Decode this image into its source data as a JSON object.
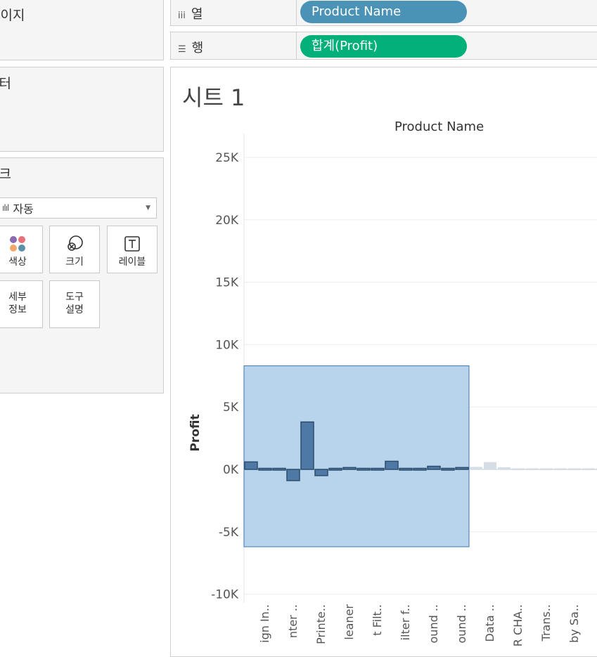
{
  "left": {
    "pages_title": "페이지",
    "filters_title": "필터",
    "marks_title": "마크",
    "marks_type": "자동",
    "mark_buttons": [
      "색상",
      "크기",
      "레이블",
      "세부\n정보",
      "도구\n설명"
    ]
  },
  "shelves": {
    "columns": {
      "label": "열",
      "pill": "Product Name",
      "color": "#4a93b7"
    },
    "rows": {
      "label": "행",
      "pill": "합계(Profit)",
      "color": "#04b07a"
    }
  },
  "sheet": {
    "title": "시트 1"
  },
  "chart_data": {
    "type": "bar",
    "title": "",
    "header": "Product Name",
    "ylabel": "Profit",
    "ylim": [
      -10500,
      25000
    ],
    "yticks": [
      25000,
      20000,
      15000,
      10000,
      5000,
      0,
      -5000,
      -10000
    ],
    "ytick_labels": [
      "25K",
      "20K",
      "15K",
      "10K",
      "5K",
      "0K",
      "-5K",
      "-10K"
    ],
    "categories": [
      "",
      "ign In..",
      "",
      "nter ..",
      "",
      "Printe..",
      "",
      "leaner",
      "",
      "t Filt..",
      "",
      "ilter f..",
      "",
      "ound ..",
      "",
      "ound ..",
      "",
      "Data ..",
      "",
      "R CHA..",
      "",
      "Trans..",
      "",
      "by Sa..",
      "",
      "",
      "",
      ""
    ],
    "values": [
      600,
      80,
      80,
      -900,
      3800,
      -500,
      100,
      150,
      60,
      120,
      650,
      90,
      80,
      250,
      80,
      150,
      200,
      580,
      170,
      20,
      20,
      20,
      15,
      15,
      40,
      40,
      20,
      20
    ],
    "selection": {
      "from_index": 0,
      "to_index": 15,
      "y_top": 8300,
      "y_bottom": -6200
    },
    "colors": {
      "selected": "#4e79a7",
      "unselected": "#d5dde6",
      "selection_fill": "#b7d4ec",
      "selection_border": "#3c79ae",
      "grid": "#ececec"
    }
  }
}
